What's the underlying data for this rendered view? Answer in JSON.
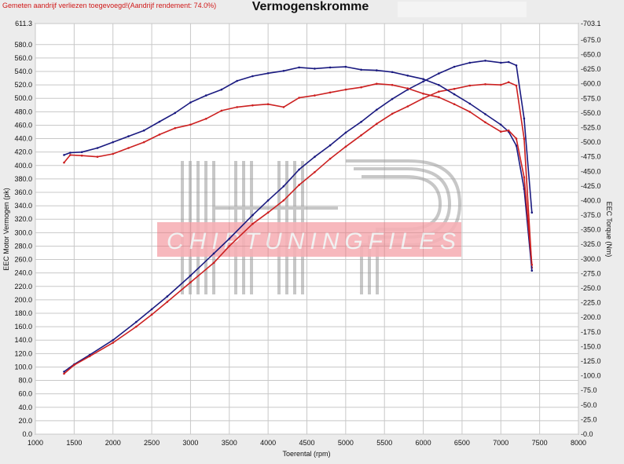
{
  "header": {
    "note": "Gemeten aandrijf verliezen toegevoegd!(Aandrijf rendement: 74.0%)",
    "title": "Vermogenskromme"
  },
  "watermark": {
    "text": "CHIPTUNINGFILES",
    "logo": "HP"
  },
  "colors": {
    "tuned": "#1a1a80",
    "stock": "#cc2020",
    "grid": "#c8c8c8",
    "plot_bg": "#ffffff"
  },
  "chart_data": {
    "type": "line",
    "title": "Vermogenskromme",
    "xlabel": "Toerental (rpm)",
    "ylabel": "EEC Motor Vermogen (pk)",
    "y2label": "EEC Torque (Nm)",
    "xlim": [
      1000,
      8000
    ],
    "ylim": [
      0,
      611.3
    ],
    "y2lim": [
      0,
      703.1
    ],
    "grid": true,
    "x_ticks": [
      "1000",
      "1500",
      "2000",
      "2500",
      "3000",
      "3500",
      "4000",
      "4500",
      "5000",
      "5500",
      "6000",
      "6500",
      "7000",
      "7500",
      "8000"
    ],
    "y_ticks": [
      "0.0",
      "20.0",
      "40.0",
      "60.0",
      "80.0",
      "100.0",
      "120.0",
      "140.0",
      "160.0",
      "180.0",
      "200.0",
      "220.0",
      "240.0",
      "260.0",
      "280.0",
      "300.0",
      "320.0",
      "340.0",
      "360.0",
      "380.0",
      "400.0",
      "420.0",
      "440.0",
      "460.0",
      "480.0",
      "500.0",
      "520.0",
      "540.0",
      "560.0",
      "580.0",
      "611.3"
    ],
    "y2_ticks": [
      "0.0",
      "25.0",
      "50.0",
      "75.0",
      "100.0",
      "125.0",
      "150.0",
      "175.0",
      "200.0",
      "225.0",
      "250.0",
      "275.0",
      "300.0",
      "325.0",
      "350.0",
      "375.0",
      "400.0",
      "425.0",
      "450.0",
      "475.0",
      "500.0",
      "525.0",
      "550.0",
      "575.0",
      "600.0",
      "625.0",
      "650.0",
      "675.0",
      "703.1"
    ],
    "series": [
      {
        "axis": "left",
        "color": "#1a1a80",
        "x": [
          1370,
          1500,
          1700,
          2000,
          2300,
          2500,
          2700,
          3000,
          3300,
          3500,
          3800,
          4000,
          4200,
          4400,
          4600,
          4800,
          5000,
          5200,
          5400,
          5600,
          5800,
          6000,
          6200,
          6400,
          6600,
          6800,
          7000,
          7100,
          7200,
          7300,
          7400
        ],
        "y": [
          93,
          104,
          118,
          140,
          167,
          186,
          205,
          236,
          269,
          291,
          326,
          348,
          369,
          394,
          413,
          430,
          449,
          465,
          483,
          499,
          513,
          525,
          537,
          547,
          553,
          556,
          553,
          554,
          549,
          470,
          330
        ]
      },
      {
        "axis": "left",
        "color": "#cc2020",
        "x": [
          1370,
          1500,
          1700,
          2000,
          2300,
          2500,
          2700,
          3000,
          3300,
          3500,
          3800,
          4000,
          4200,
          4400,
          4600,
          4800,
          5000,
          5200,
          5400,
          5600,
          5800,
          6000,
          6200,
          6400,
          6600,
          6800,
          7000,
          7100,
          7200,
          7300,
          7400
        ],
        "y": [
          90,
          103,
          116,
          136,
          160,
          178,
          197,
          226,
          255,
          280,
          313,
          330,
          348,
          371,
          390,
          410,
          428,
          445,
          462,
          477,
          488,
          500,
          510,
          514,
          519,
          521,
          520,
          524,
          519,
          440,
          248
        ]
      },
      {
        "axis": "right",
        "color": "#1a1a80",
        "x": [
          1370,
          1450,
          1600,
          1800,
          2000,
          2200,
          2400,
          2600,
          2800,
          3000,
          3200,
          3400,
          3600,
          3800,
          4000,
          4200,
          4400,
          4600,
          4800,
          5000,
          5200,
          5400,
          5600,
          5800,
          6000,
          6200,
          6400,
          6600,
          6800,
          7000,
          7100,
          7200,
          7300,
          7400
        ],
        "y": [
          478,
          482,
          483,
          490,
          500,
          510,
          520,
          535,
          550,
          568,
          580,
          590,
          605,
          613,
          618,
          622,
          628,
          626,
          628,
          629,
          624,
          623,
          620,
          614,
          608,
          598,
          582,
          566,
          548,
          530,
          518,
          494,
          420,
          280
        ]
      },
      {
        "axis": "right",
        "color": "#cc2020",
        "x": [
          1370,
          1450,
          1600,
          1800,
          2000,
          2200,
          2400,
          2600,
          2800,
          3000,
          3200,
          3400,
          3600,
          3800,
          4000,
          4200,
          4400,
          4600,
          4800,
          5000,
          5200,
          5400,
          5600,
          5800,
          6000,
          6200,
          6400,
          6600,
          6800,
          7000,
          7100,
          7200,
          7300,
          7400
        ],
        "y": [
          465,
          478,
          477,
          475,
          480,
          490,
          500,
          513,
          524,
          530,
          540,
          554,
          560,
          563,
          565,
          560,
          576,
          580,
          585,
          590,
          594,
          600,
          598,
          592,
          583,
          577,
          565,
          552,
          534,
          518,
          520,
          506,
          440,
          290
        ]
      }
    ]
  }
}
